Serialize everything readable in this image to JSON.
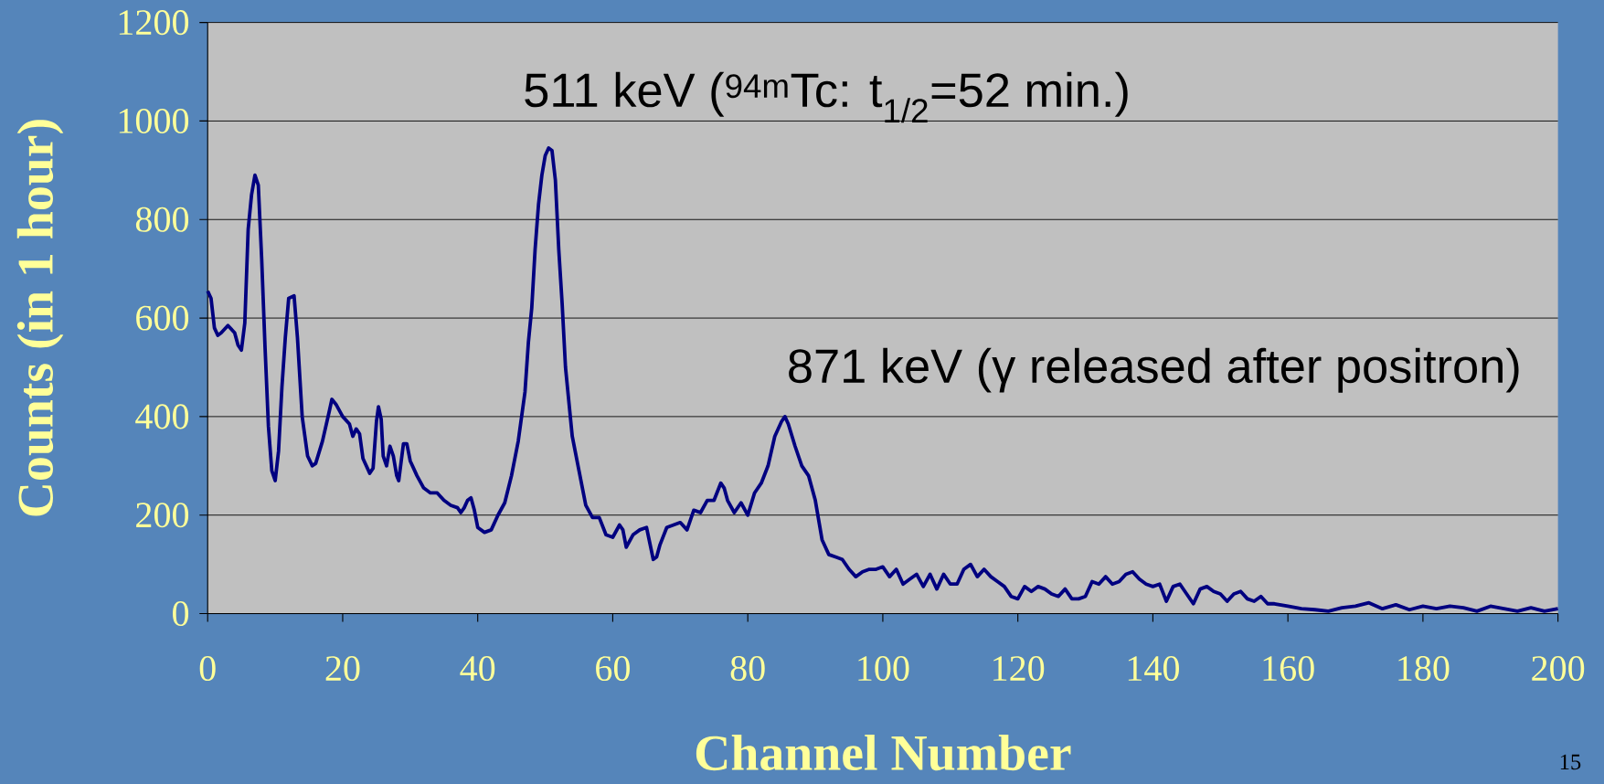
{
  "chart_data": {
    "type": "line",
    "xlabel": "Channel Number",
    "ylabel": "Counts (in 1 hour)",
    "annotations": [
      "511 keV ($^{94m}$Tc: t$_{1/2}$=52 min.)",
      "871 keV (γ released after positron)",
      "15"
    ],
    "xlim": [
      0,
      200
    ],
    "xticks": [
      0,
      20,
      40,
      60,
      80,
      100,
      120,
      140,
      160,
      180,
      200
    ],
    "ylim": [
      0,
      1200
    ],
    "yticks": [
      0,
      200,
      400,
      600,
      800,
      1000,
      1200
    ],
    "grid": "y",
    "marker": "none",
    "line_style": "solid",
    "series": [
      {
        "color": "#000080",
        "x": [
          0,
          0.5,
          1,
          1.5,
          2,
          3,
          4,
          4.5,
          5,
          5.5,
          6,
          6.5,
          7,
          7.5,
          8,
          8.5,
          9,
          9.5,
          10,
          10.5,
          11,
          11.5,
          12,
          12.8,
          13.3,
          14,
          14.8,
          15.5,
          16,
          17,
          18,
          18.4,
          19,
          20,
          21,
          21.5,
          22,
          22.5,
          23,
          24,
          24.5,
          25,
          25.3,
          25.7,
          26,
          26.5,
          27,
          27.5,
          28,
          28.3,
          29,
          29.5,
          30,
          31,
          32,
          33,
          34,
          35,
          36,
          37,
          37.5,
          38,
          38.5,
          39,
          39.5,
          40,
          41,
          42,
          43,
          44,
          45,
          46,
          47,
          47.5,
          48,
          48.5,
          49,
          49.5,
          50,
          50.5,
          51,
          51.5,
          52,
          52.5,
          53,
          54,
          55,
          56,
          57,
          58,
          59,
          60,
          61,
          61.5,
          62,
          63,
          64,
          65,
          66,
          66.5,
          67,
          68,
          69,
          70,
          71,
          72,
          73,
          74,
          75,
          76,
          76.5,
          77,
          78,
          79,
          80,
          81,
          82,
          83,
          84,
          85,
          85.5,
          86,
          87,
          88,
          89,
          90,
          91,
          92,
          93,
          94,
          95,
          96,
          97,
          98,
          99,
          100,
          101,
          102,
          103,
          104,
          105,
          106,
          107,
          108,
          109,
          110,
          111,
          112,
          113,
          114,
          115,
          116,
          117,
          118,
          119,
          120,
          121,
          122,
          123,
          124,
          125,
          126,
          127,
          128,
          129,
          130,
          131,
          132,
          133,
          134,
          135,
          136,
          137,
          138,
          139,
          140,
          141,
          142,
          143,
          144,
          145,
          146,
          147,
          148,
          149,
          150,
          151,
          152,
          153,
          154,
          155,
          156,
          157,
          158,
          160,
          162,
          164,
          166,
          168,
          170,
          172,
          174,
          176,
          178,
          180,
          182,
          184,
          186,
          188,
          190,
          192,
          194,
          196,
          198,
          200
        ],
        "values": [
          655,
          640,
          580,
          565,
          570,
          585,
          570,
          545,
          535,
          590,
          780,
          850,
          890,
          870,
          720,
          540,
          380,
          290,
          270,
          330,
          460,
          560,
          640,
          645,
          560,
          400,
          320,
          300,
          305,
          350,
          410,
          435,
          425,
          400,
          385,
          360,
          375,
          365,
          315,
          285,
          295,
          390,
          420,
          395,
          320,
          300,
          340,
          320,
          280,
          270,
          345,
          345,
          310,
          280,
          255,
          245,
          245,
          230,
          220,
          215,
          205,
          215,
          230,
          235,
          210,
          175,
          165,
          170,
          200,
          225,
          280,
          350,
          450,
          550,
          620,
          740,
          830,
          890,
          930,
          945,
          940,
          880,
          740,
          630,
          500,
          360,
          290,
          220,
          195,
          195,
          160,
          155,
          180,
          170,
          135,
          160,
          170,
          175,
          110,
          115,
          140,
          175,
          180,
          185,
          170,
          210,
          205,
          230,
          230,
          265,
          255,
          230,
          205,
          225,
          200,
          245,
          265,
          300,
          360,
          390,
          400,
          385,
          340,
          300,
          280,
          230,
          150,
          120,
          115,
          110,
          90,
          75,
          85,
          90,
          90,
          95,
          75,
          90,
          60,
          70,
          80,
          55,
          80,
          50,
          80,
          60,
          60,
          90,
          100,
          75,
          90,
          75,
          65,
          55,
          35,
          30,
          55,
          45,
          55,
          50,
          40,
          35,
          50,
          30,
          30,
          35,
          65,
          60,
          75,
          60,
          65,
          80,
          85,
          70,
          60,
          55,
          60,
          25,
          55,
          60,
          40,
          20,
          50,
          55,
          45,
          40,
          25,
          40,
          45,
          30,
          25,
          35,
          20,
          20,
          15,
          10,
          8,
          5,
          12,
          15,
          22,
          10,
          18,
          8,
          15,
          10,
          15,
          12,
          5,
          15,
          10,
          5,
          12,
          5,
          10
        ]
      }
    ]
  }
}
